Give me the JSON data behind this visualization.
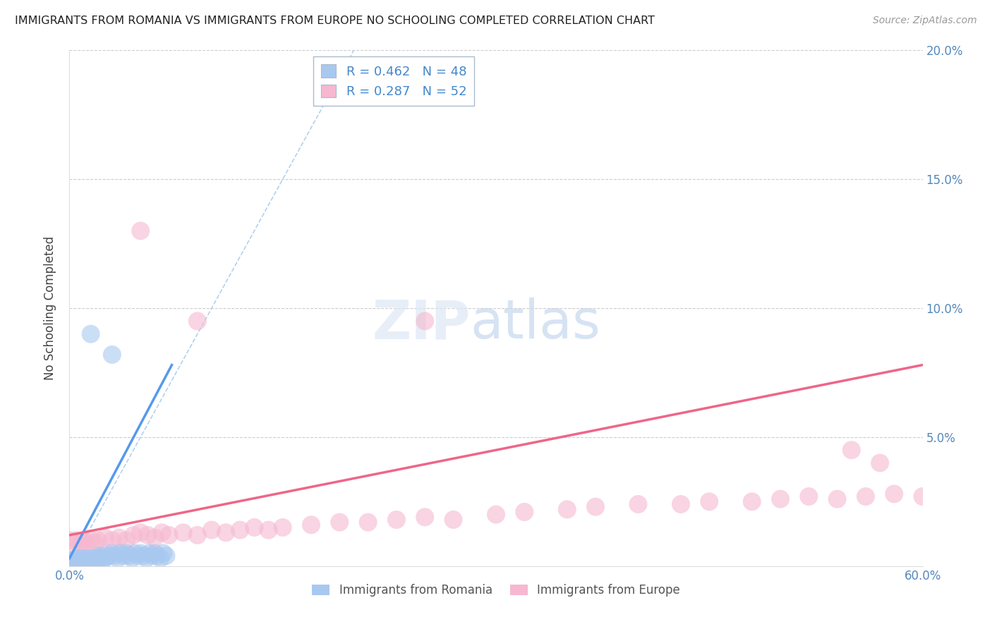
{
  "title": "IMMIGRANTS FROM ROMANIA VS IMMIGRANTS FROM EUROPE NO SCHOOLING COMPLETED CORRELATION CHART",
  "source": "Source: ZipAtlas.com",
  "ylabel": "No Schooling Completed",
  "xlabel": "",
  "xlim": [
    0.0,
    0.6
  ],
  "ylim": [
    0.0,
    0.2
  ],
  "xticks": [
    0.0,
    0.1,
    0.2,
    0.3,
    0.4,
    0.5,
    0.6
  ],
  "yticks": [
    0.0,
    0.05,
    0.1,
    0.15,
    0.2
  ],
  "xticklabels": [
    "0.0%",
    "",
    "",
    "",
    "",
    "",
    "60.0%"
  ],
  "right_yticklabels": [
    "",
    "5.0%",
    "10.0%",
    "15.0%",
    "20.0%"
  ],
  "legend1_label": "Immigrants from Romania",
  "legend2_label": "Immigrants from Europe",
  "r1": 0.462,
  "n1": 48,
  "r2": 0.287,
  "n2": 52,
  "color_romania": "#a8c8f0",
  "color_europe": "#f5b8d0",
  "color_romania_line": "#5599ee",
  "color_europe_line": "#ee6688",
  "color_diagonal": "#aabbdd",
  "watermark_zip": "ZIP",
  "watermark_atlas": "atlas",
  "romania_x": [
    0.0,
    0.002,
    0.003,
    0.004,
    0.005,
    0.006,
    0.007,
    0.008,
    0.009,
    0.01,
    0.011,
    0.012,
    0.013,
    0.014,
    0.015,
    0.016,
    0.017,
    0.018,
    0.019,
    0.02,
    0.021,
    0.022,
    0.023,
    0.024,
    0.025,
    0.028,
    0.03,
    0.032,
    0.034,
    0.036,
    0.038,
    0.04,
    0.042,
    0.044,
    0.046,
    0.048,
    0.05,
    0.052,
    0.054,
    0.056,
    0.058,
    0.06,
    0.062,
    0.064,
    0.066,
    0.068,
    0.015,
    0.03
  ],
  "romania_y": [
    0.002,
    0.001,
    0.002,
    0.001,
    0.003,
    0.001,
    0.002,
    0.003,
    0.001,
    0.002,
    0.003,
    0.002,
    0.001,
    0.003,
    0.002,
    0.001,
    0.003,
    0.002,
    0.001,
    0.003,
    0.004,
    0.003,
    0.002,
    0.004,
    0.003,
    0.004,
    0.005,
    0.004,
    0.003,
    0.005,
    0.004,
    0.005,
    0.004,
    0.003,
    0.005,
    0.004,
    0.005,
    0.004,
    0.003,
    0.005,
    0.004,
    0.005,
    0.004,
    0.003,
    0.005,
    0.004,
    0.09,
    0.082
  ],
  "europe_x": [
    0.0,
    0.002,
    0.005,
    0.008,
    0.01,
    0.012,
    0.015,
    0.018,
    0.02,
    0.025,
    0.03,
    0.035,
    0.04,
    0.045,
    0.05,
    0.055,
    0.06,
    0.065,
    0.07,
    0.08,
    0.09,
    0.1,
    0.11,
    0.12,
    0.13,
    0.14,
    0.15,
    0.17,
    0.19,
    0.21,
    0.23,
    0.25,
    0.27,
    0.3,
    0.32,
    0.35,
    0.37,
    0.4,
    0.43,
    0.45,
    0.48,
    0.5,
    0.52,
    0.54,
    0.56,
    0.58,
    0.6,
    0.25,
    0.05,
    0.09,
    0.55,
    0.57
  ],
  "europe_y": [
    0.01,
    0.008,
    0.01,
    0.009,
    0.01,
    0.009,
    0.01,
    0.009,
    0.01,
    0.011,
    0.01,
    0.011,
    0.01,
    0.012,
    0.013,
    0.012,
    0.011,
    0.013,
    0.012,
    0.013,
    0.012,
    0.014,
    0.013,
    0.014,
    0.015,
    0.014,
    0.015,
    0.016,
    0.017,
    0.017,
    0.018,
    0.019,
    0.018,
    0.02,
    0.021,
    0.022,
    0.023,
    0.024,
    0.024,
    0.025,
    0.025,
    0.026,
    0.027,
    0.026,
    0.027,
    0.028,
    0.027,
    0.095,
    0.13,
    0.095,
    0.045,
    0.04
  ]
}
